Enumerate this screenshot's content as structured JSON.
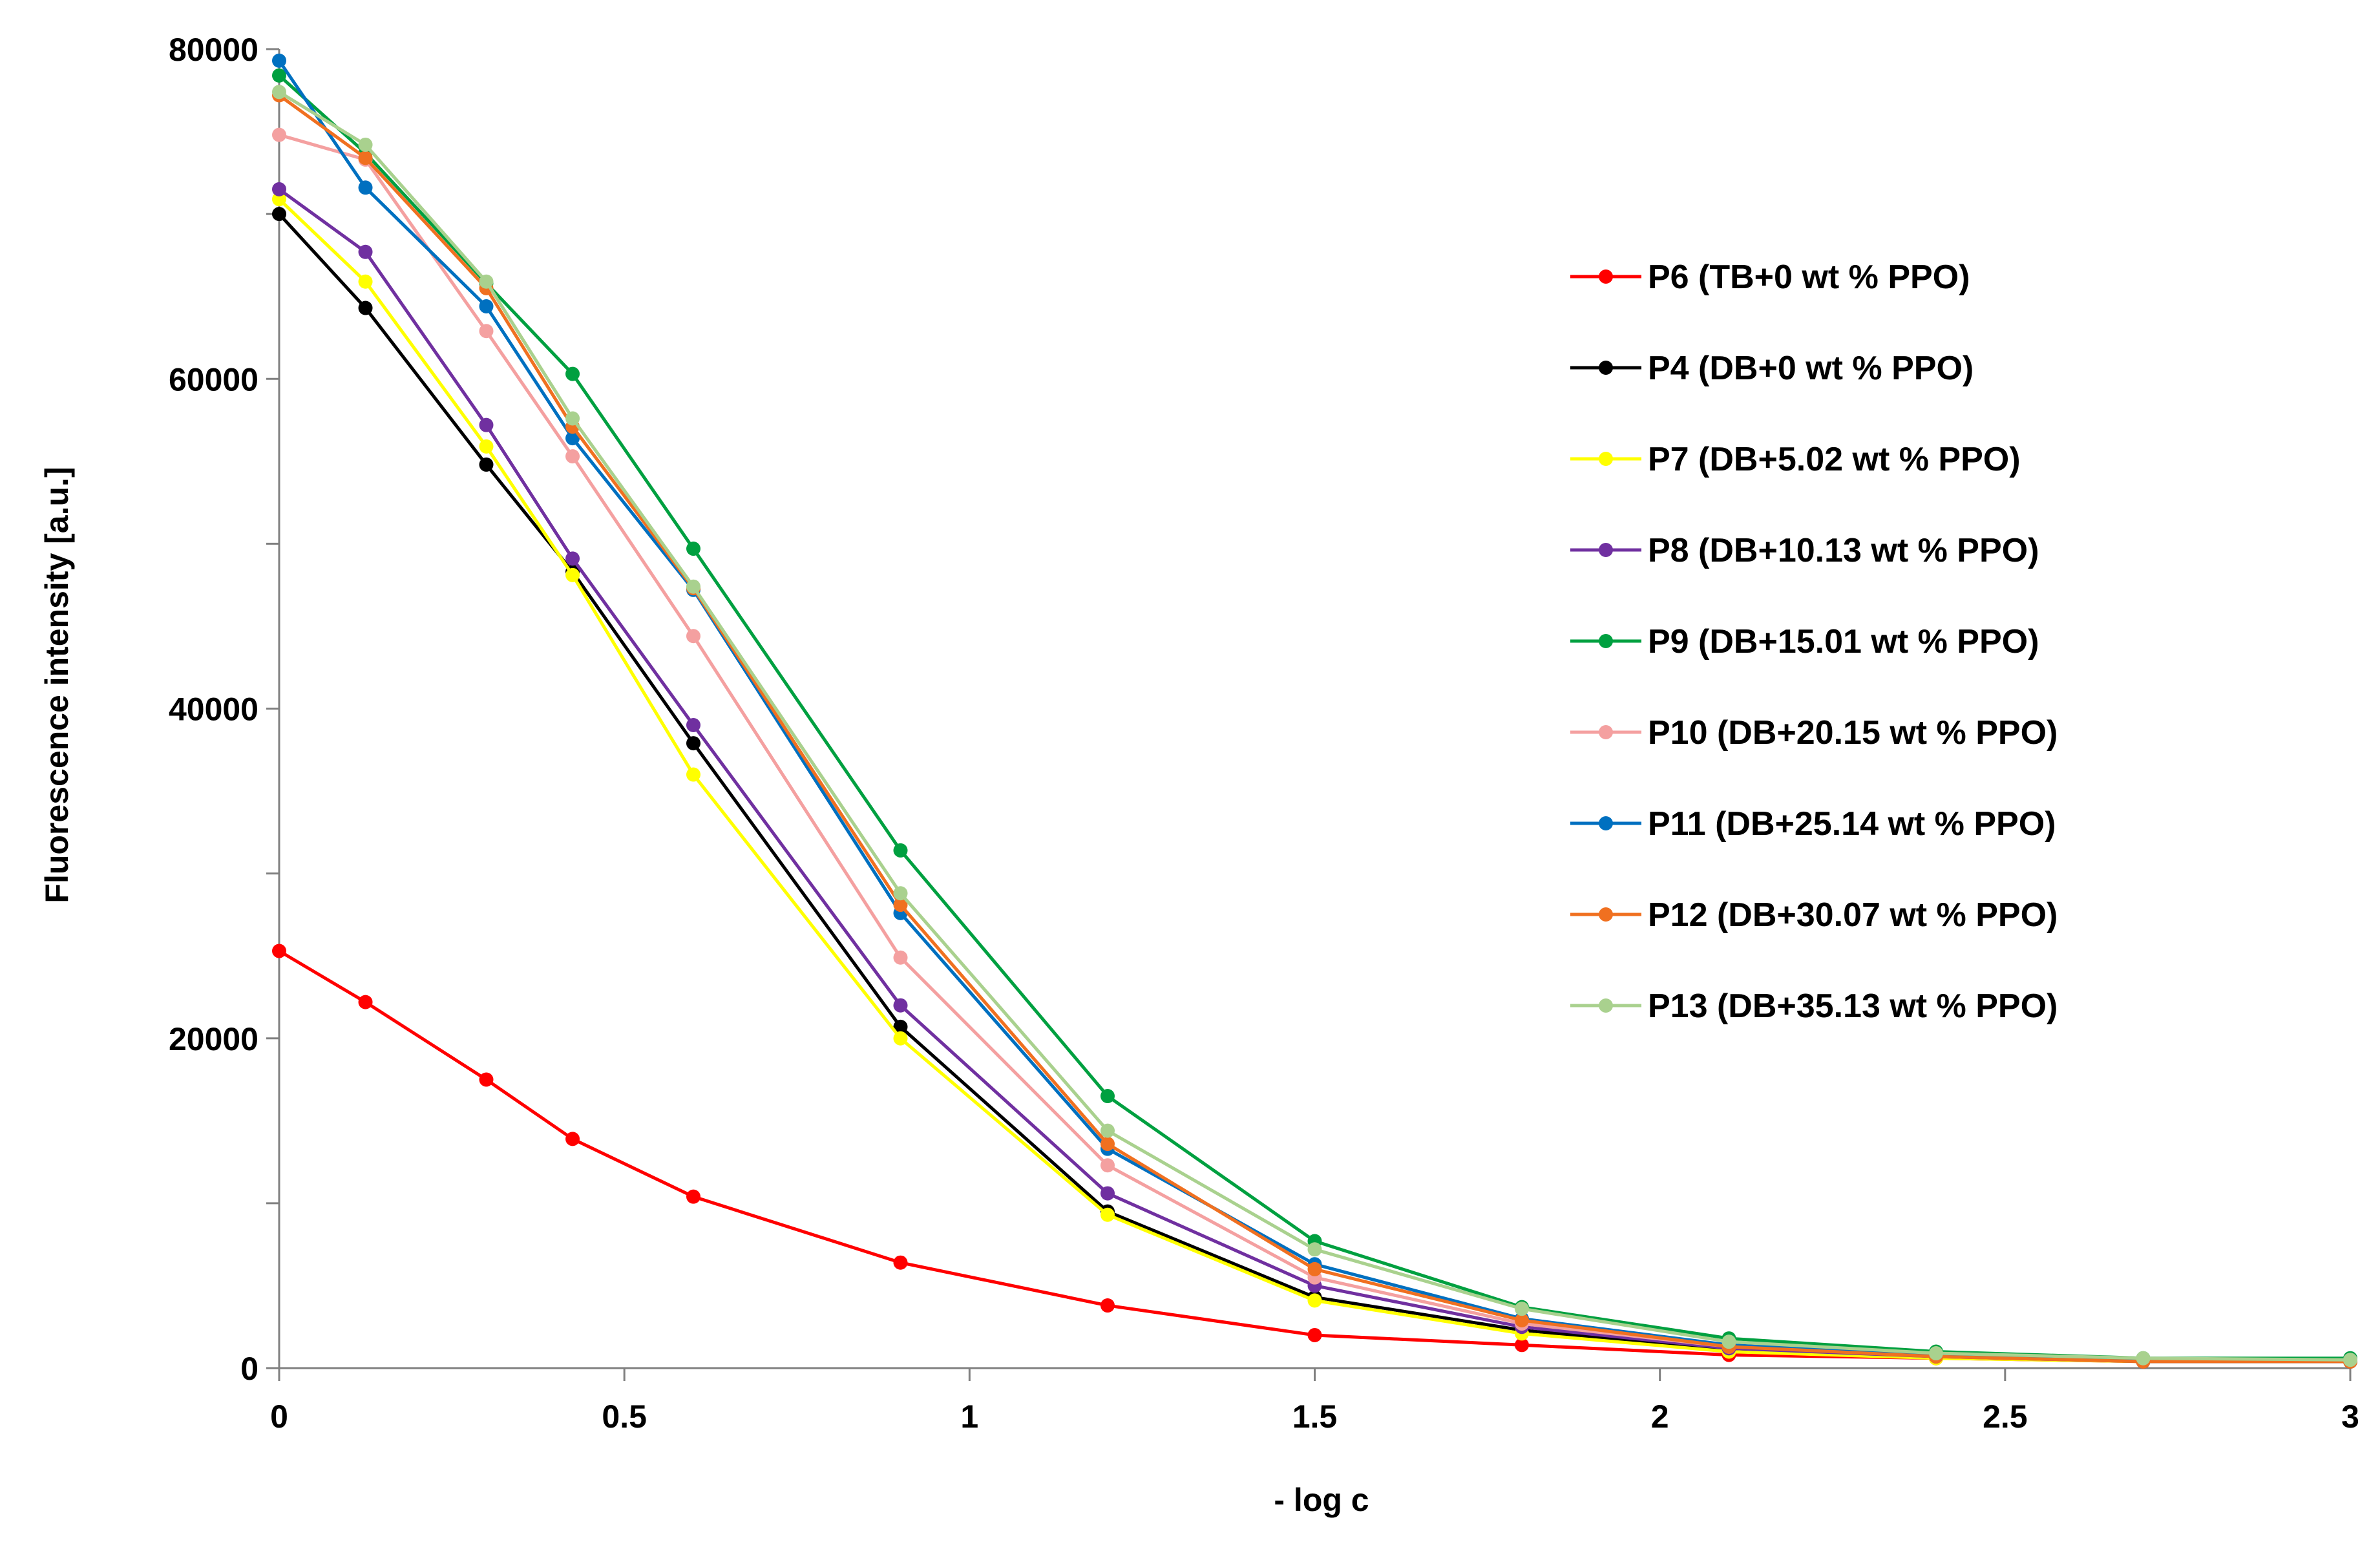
{
  "chart_data": {
    "type": "line",
    "title": "",
    "xlabel": "- log c",
    "ylabel": "Fluorescence intensity [a.u.]",
    "xlim": [
      0,
      3
    ],
    "ylim": [
      0,
      80000
    ],
    "x_ticks": [
      0,
      0.5,
      1,
      1.5,
      2,
      2.5,
      3
    ],
    "x_tick_labels": [
      "0",
      "0.5",
      "1",
      "1.5",
      "2",
      "2.5",
      "3"
    ],
    "y_ticks": [
      0,
      20000,
      40000,
      60000,
      80000
    ],
    "y_tick_labels": [
      "0",
      "20000",
      "40000",
      "60000",
      "80000"
    ],
    "grid": false,
    "legend_position": "right",
    "x": [
      0,
      0.125,
      0.3,
      0.425,
      0.6,
      0.9,
      1.2,
      1.5,
      1.8,
      2.1,
      2.4,
      2.7,
      3.0
    ],
    "series": [
      {
        "name": "P6 (TB+0 wt % PPO)",
        "color": "#ff0000",
        "values": [
          25300,
          22200,
          17500,
          13900,
          10400,
          6400,
          3800,
          2000,
          1400,
          800,
          600,
          400,
          400
        ]
      },
      {
        "name": "P4 (DB+0 wt % PPO)",
        "color": "#000000",
        "values": [
          70000,
          64300,
          54800,
          48300,
          37900,
          20700,
          9500,
          4300,
          2300,
          1100,
          700,
          400,
          400
        ]
      },
      {
        "name": "P7 (DB+5.02 wt % PPO)",
        "color": "#ffff00",
        "values": [
          70900,
          65900,
          55900,
          48100,
          36000,
          20000,
          9300,
          4100,
          2100,
          1000,
          600,
          400,
          400
        ]
      },
      {
        "name": "P8 (DB+10.13 wt % PPO)",
        "color": "#7030a0",
        "values": [
          71500,
          67700,
          57200,
          49100,
          39000,
          22000,
          10600,
          5000,
          2500,
          1200,
          700,
          400,
          400
        ]
      },
      {
        "name": "P9 (DB+15.01 wt % PPO)",
        "color": "#00a040",
        "values": [
          78400,
          73700,
          65800,
          60300,
          49700,
          31400,
          16500,
          7700,
          3700,
          1800,
          1000,
          600,
          600
        ]
      },
      {
        "name": "P10 (DB+20.15 wt % PPO)",
        "color": "#f4a0a0",
        "values": [
          74800,
          73300,
          62900,
          55300,
          44400,
          24900,
          12300,
          5500,
          2700,
          1300,
          800,
          500,
          500
        ]
      },
      {
        "name": "P11 (DB+25.14 wt % PPO)",
        "color": "#0070c0",
        "values": [
          79300,
          71600,
          64400,
          56400,
          47200,
          27600,
          13300,
          6300,
          3000,
          1400,
          800,
          500,
          500
        ]
      },
      {
        "name": "P12 (DB+30.07 wt % PPO)",
        "color": "#f07020",
        "values": [
          77200,
          73400,
          65500,
          57100,
          47300,
          28100,
          13600,
          6000,
          2900,
          1300,
          700,
          400,
          400
        ]
      },
      {
        "name": "P13 (DB+35.13 wt % PPO)",
        "color": "#a9d18e",
        "values": [
          77400,
          74200,
          65900,
          57600,
          47400,
          28800,
          14400,
          7200,
          3600,
          1600,
          900,
          600,
          500
        ]
      }
    ]
  }
}
